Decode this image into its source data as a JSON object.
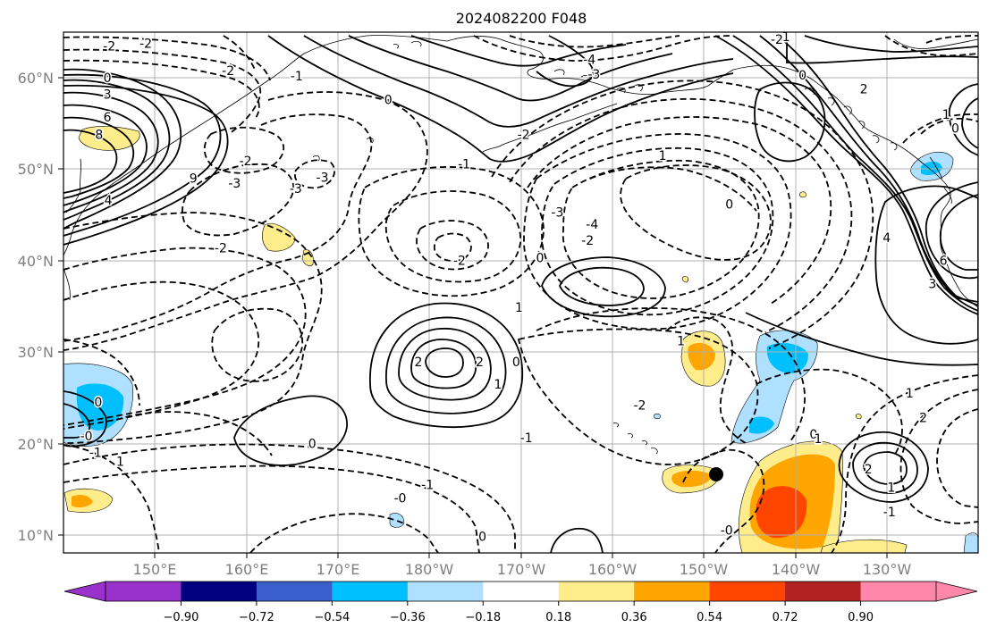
{
  "title": "2024082200 F048",
  "lat_labels": [
    "60°N",
    "50°N",
    "40°N",
    "30°N",
    "20°N",
    "10°N"
  ],
  "lon_labels": [
    "150°E",
    "160°E",
    "170°E",
    "180°W",
    "170°W",
    "160°W",
    "150°W",
    "140°W",
    "130°W"
  ],
  "colorbar": {
    "colors": [
      "#9932cc",
      "#000080",
      "#3a5fcd",
      "#00bfff",
      "#b0e0ff",
      "#ffffff",
      "#ffec8b",
      "#ffa500",
      "#ff4500",
      "#b22222",
      "#ff88aa"
    ],
    "tick_labels": [
      "−0.90",
      "−0.72",
      "−0.54",
      "−0.36",
      "−0.18",
      "0.18",
      "0.36",
      "0.54",
      "0.72",
      "0.90"
    ]
  },
  "contour_labels": [
    {
      "text": "-2",
      "lon": 145.0,
      "lat": 63.5
    },
    {
      "text": "-2",
      "lon": 149.0,
      "lat": 63.8
    },
    {
      "text": "-2",
      "lon": 158.0,
      "lat": 60.8
    },
    {
      "text": "0",
      "lon": 144.8,
      "lat": 60.0
    },
    {
      "text": "3",
      "lon": 144.8,
      "lat": 58.2
    },
    {
      "text": "6",
      "lon": 144.8,
      "lat": 55.7
    },
    {
      "text": "8",
      "lon": 143.9,
      "lat": 53.8
    },
    {
      "text": "9",
      "lon": 154.2,
      "lat": 49.0
    },
    {
      "text": "4",
      "lon": 144.9,
      "lat": 46.6
    },
    {
      "text": "-2",
      "lon": 159.9,
      "lat": 50.9
    },
    {
      "text": "-3",
      "lon": 158.7,
      "lat": 48.5
    },
    {
      "text": "-3",
      "lon": 168.3,
      "lat": 49.1
    },
    {
      "text": "-2",
      "lon": 157.2,
      "lat": 41.4
    },
    {
      "text": "-1",
      "lon": 165.5,
      "lat": 60.2
    },
    {
      "text": "0",
      "lon": 175.5,
      "lat": 57.6
    },
    {
      "text": "-3",
      "lon": 165.4,
      "lat": 47.9
    },
    {
      "text": "-2",
      "lon": 183.3,
      "lat": 40.0
    },
    {
      "text": "-3",
      "lon": 194.0,
      "lat": 45.3
    },
    {
      "text": "-4",
      "lon": 197.8,
      "lat": 44.0
    },
    {
      "text": "-2",
      "lon": 197.3,
      "lat": 42.2
    },
    {
      "text": "0",
      "lon": 192.1,
      "lat": 40.3
    },
    {
      "text": "1",
      "lon": 189.8,
      "lat": 34.9
    },
    {
      "text": "-2",
      "lon": 190.3,
      "lat": 53.8
    },
    {
      "text": "-1",
      "lon": 183.8,
      "lat": 50.6
    },
    {
      "text": "-3",
      "lon": 198.0,
      "lat": 60.4
    },
    {
      "text": "-4",
      "lon": 197.5,
      "lat": 62.0
    },
    {
      "text": "2",
      "lon": 178.8,
      "lat": 28.9
    },
    {
      "text": "2",
      "lon": 185.5,
      "lat": 28.9
    },
    {
      "text": "1",
      "lon": 187.5,
      "lat": 26.5
    },
    {
      "text": "0",
      "lon": 189.5,
      "lat": 28.9
    },
    {
      "text": "0",
      "lon": 167.2,
      "lat": 20.0
    },
    {
      "text": "-0",
      "lon": 176.8,
      "lat": 14.0
    },
    {
      "text": "-1",
      "lon": 179.8,
      "lat": 15.5
    },
    {
      "text": "0",
      "lon": 185.8,
      "lat": 9.8
    },
    {
      "text": "-1",
      "lon": 190.6,
      "lat": 20.6
    },
    {
      "text": "-2",
      "lon": 203.0,
      "lat": 24.2
    },
    {
      "text": "-0",
      "lon": 212.5,
      "lat": 10.5
    },
    {
      "text": "1",
      "lon": 207.5,
      "lat": 31.2
    },
    {
      "text": "1",
      "lon": 205.5,
      "lat": 51.5
    },
    {
      "text": "0",
      "lon": 212.8,
      "lat": 46.2
    },
    {
      "text": "0",
      "lon": 220.8,
      "lat": 60.3
    },
    {
      "text": "-2",
      "lon": 218.0,
      "lat": 64.2
    },
    {
      "text": "1",
      "lon": 219.0,
      "lat": 64.5
    },
    {
      "text": "2",
      "lon": 227.5,
      "lat": 58.8
    },
    {
      "text": "1",
      "lon": 236.5,
      "lat": 56.0
    },
    {
      "text": "0",
      "lon": 237.5,
      "lat": 54.5
    },
    {
      "text": "4",
      "lon": 230.0,
      "lat": 42.5
    },
    {
      "text": "6",
      "lon": 236.2,
      "lat": 40.0
    },
    {
      "text": "3",
      "lon": 235.0,
      "lat": 37.5
    },
    {
      "text": "0",
      "lon": 222.0,
      "lat": 21.0
    },
    {
      "text": "1",
      "lon": 222.5,
      "lat": 20.5
    },
    {
      "text": "2",
      "lon": 228.0,
      "lat": 17.2
    },
    {
      "text": "1",
      "lon": 230.5,
      "lat": 15.2
    },
    {
      "text": "-1",
      "lon": 230.3,
      "lat": 12.5
    },
    {
      "text": "1",
      "lon": 232.5,
      "lat": 25.5
    },
    {
      "text": "2",
      "lon": 234.0,
      "lat": 22.8
    },
    {
      "text": "-1",
      "lon": 143.5,
      "lat": 19.0
    },
    {
      "text": "1",
      "lon": 146.2,
      "lat": 18.0
    },
    {
      "text": "0",
      "lon": 143.8,
      "lat": 24.5
    },
    {
      "text": "-0",
      "lon": 142.5,
      "lat": 20.8
    }
  ]
}
